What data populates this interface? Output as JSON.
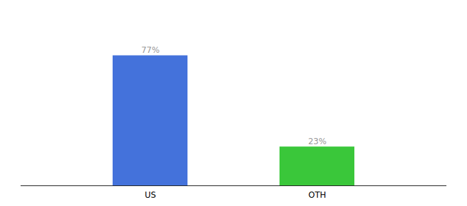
{
  "chart_data": {
    "type": "bar",
    "categories": [
      "US",
      "OTH"
    ],
    "values": [
      77,
      23
    ],
    "value_labels": [
      "77%",
      "23%"
    ],
    "colors": [
      "#4472db",
      "#3ac73a"
    ],
    "ylim": [
      0,
      100
    ],
    "data_labels": true,
    "tick_labels": "x"
  }
}
